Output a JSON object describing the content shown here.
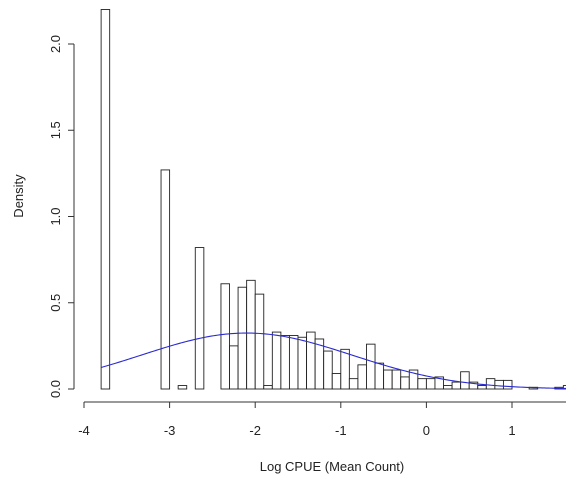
{
  "chart_data": {
    "type": "histogram",
    "xlabel": "Log CPUE (Mean Count)",
    "ylabel": "Density",
    "xlim": [
      -3.95,
      1.65
    ],
    "ylim": [
      0,
      2.2
    ],
    "x_ticks": [
      -4,
      -3,
      -2,
      -1,
      0,
      1
    ],
    "x_tick_labels": [
      "-4",
      "-3",
      "-2",
      "-1",
      "0",
      "1"
    ],
    "y_ticks": [
      0,
      0.5,
      1.0,
      1.5,
      2.0
    ],
    "y_tick_labels": [
      "0.0",
      "0.5",
      "1.0",
      "1.5",
      "2.0"
    ],
    "bin_width": 0.1,
    "bins": [
      {
        "x0": -3.8,
        "density": 2.2
      },
      {
        "x0": -3.1,
        "density": 1.27
      },
      {
        "x0": -2.9,
        "density": 0.02
      },
      {
        "x0": -2.7,
        "density": 0.82
      },
      {
        "x0": -2.4,
        "density": 0.61
      },
      {
        "x0": -2.3,
        "density": 0.25
      },
      {
        "x0": -2.2,
        "density": 0.59
      },
      {
        "x0": -2.1,
        "density": 0.63
      },
      {
        "x0": -2.0,
        "density": 0.55
      },
      {
        "x0": -1.9,
        "density": 0.02
      },
      {
        "x0": -1.8,
        "density": 0.33
      },
      {
        "x0": -1.7,
        "density": 0.31
      },
      {
        "x0": -1.6,
        "density": 0.31
      },
      {
        "x0": -1.5,
        "density": 0.3
      },
      {
        "x0": -1.4,
        "density": 0.33
      },
      {
        "x0": -1.3,
        "density": 0.29
      },
      {
        "x0": -1.2,
        "density": 0.22
      },
      {
        "x0": -1.1,
        "density": 0.09
      },
      {
        "x0": -1.0,
        "density": 0.23
      },
      {
        "x0": -0.9,
        "density": 0.06
      },
      {
        "x0": -0.8,
        "density": 0.14
      },
      {
        "x0": -0.7,
        "density": 0.26
      },
      {
        "x0": -0.6,
        "density": 0.15
      },
      {
        "x0": -0.5,
        "density": 0.11
      },
      {
        "x0": -0.4,
        "density": 0.11
      },
      {
        "x0": -0.3,
        "density": 0.07
      },
      {
        "x0": -0.2,
        "density": 0.11
      },
      {
        "x0": -0.1,
        "density": 0.06
      },
      {
        "x0": 0.0,
        "density": 0.06
      },
      {
        "x0": 0.1,
        "density": 0.07
      },
      {
        "x0": 0.2,
        "density": 0.02
      },
      {
        "x0": 0.3,
        "density": 0.04
      },
      {
        "x0": 0.4,
        "density": 0.1
      },
      {
        "x0": 0.5,
        "density": 0.04
      },
      {
        "x0": 0.6,
        "density": 0.02
      },
      {
        "x0": 0.7,
        "density": 0.06
      },
      {
        "x0": 0.8,
        "density": 0.05
      },
      {
        "x0": 0.9,
        "density": 0.05
      },
      {
        "x0": 1.2,
        "density": 0.01
      },
      {
        "x0": 1.5,
        "density": 0.01
      },
      {
        "x0": 1.6,
        "density": 0.02
      }
    ],
    "density_curve": {
      "color": "#2a2ad0",
      "mean": -2.1,
      "sd": 1.23,
      "x_range": [
        -3.8,
        1.65
      ]
    },
    "grid": false,
    "legend": false
  }
}
